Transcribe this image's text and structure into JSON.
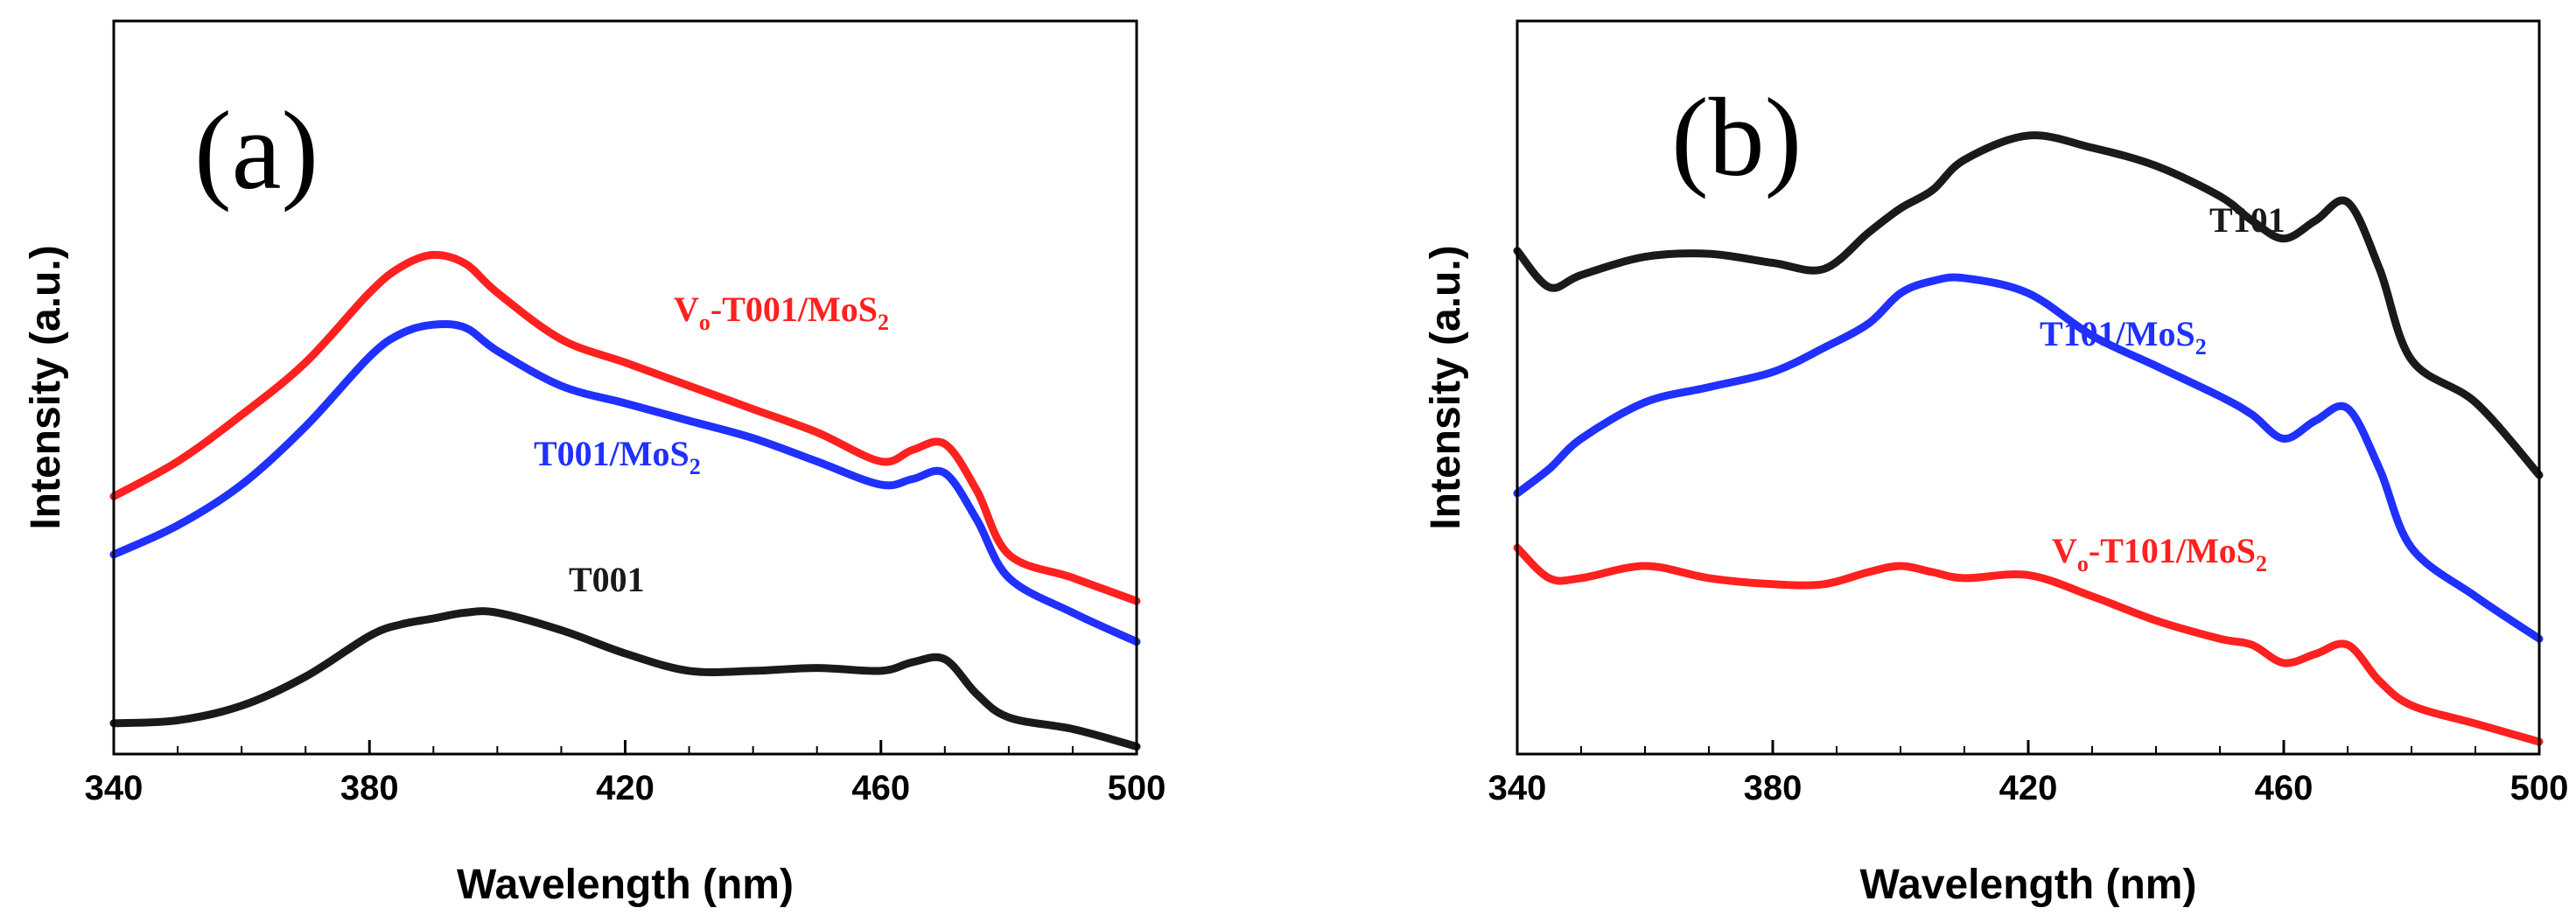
{
  "chart_data": [
    {
      "type": "line",
      "panel_label": "(a)",
      "xlabel": "Wavelength (nm)",
      "ylabel": "Intensity (a.u.)",
      "xlim": [
        340,
        500
      ],
      "ylim": [
        0,
        100
      ],
      "y_ticks_labeled": false,
      "x_ticks": [
        "340",
        "380",
        "420",
        "460",
        "500"
      ],
      "x": [
        340,
        350,
        360,
        370,
        380,
        385,
        390,
        395,
        400,
        410,
        420,
        430,
        440,
        450,
        460,
        465,
        470,
        475,
        480,
        490,
        500
      ],
      "series": [
        {
          "name": "Vo-T001/MoS2",
          "label_main": "V",
          "label_sub1": "o",
          "label_mid": "-T001/MoS",
          "label_sub2": "2",
          "color": "#ff2020",
          "values": [
            44,
            50,
            58,
            67,
            79,
            83.5,
            85.5,
            84,
            79,
            71,
            67,
            63,
            59,
            55,
            50,
            52,
            53,
            45,
            34,
            30,
            26
          ]
        },
        {
          "name": "T001/MoS2",
          "label_main": "T001/MoS",
          "label_sub2": "2",
          "color": "#2030ff",
          "values": [
            34,
            39,
            46,
            56,
            68,
            72,
            73.5,
            73,
            69,
            63,
            60,
            57,
            54,
            50,
            46,
            47,
            48,
            40,
            30,
            24,
            19
          ]
        },
        {
          "name": "T001",
          "label_main": "T001",
          "color": "#1a1a1a",
          "values": [
            5,
            5.5,
            8,
            13,
            20,
            22,
            23,
            24,
            24,
            21,
            17,
            14,
            14,
            14.5,
            14,
            15.5,
            16,
            10,
            6,
            4,
            1
          ]
        }
      ]
    },
    {
      "type": "line",
      "panel_label": "(b)",
      "xlabel": "Wavelength (nm)",
      "ylabel": "Intensity (a.u.)",
      "xlim": [
        340,
        500
      ],
      "ylim": [
        0,
        100
      ],
      "y_ticks_labeled": false,
      "x_ticks": [
        "340",
        "380",
        "420",
        "460",
        "500"
      ],
      "x": [
        340,
        345,
        350,
        360,
        370,
        380,
        388,
        395,
        400,
        405,
        410,
        420,
        430,
        440,
        450,
        455,
        460,
        465,
        470,
        475,
        480,
        490,
        500
      ],
      "series": [
        {
          "name": "T101",
          "label_main": "T101",
          "color": "#1a1a1a",
          "values": [
            81,
            75,
            77,
            80,
            80.5,
            79,
            78,
            84,
            88,
            91,
            96,
            100,
            98,
            95,
            90,
            86,
            83,
            86,
            89,
            78,
            63,
            56,
            44
          ]
        },
        {
          "name": "T101/MoS2",
          "label_main": "T101/MoS",
          "label_sub2": "2",
          "color": "#2030ff",
          "values": [
            41,
            45,
            50,
            56,
            58.5,
            61,
            65,
            69,
            74,
            76,
            76.5,
            74,
            67,
            62,
            57,
            54,
            50,
            53,
            55,
            45,
            32,
            24,
            17
          ]
        },
        {
          "name": "Vo-T101/MoS2",
          "label_main": "V",
          "label_sub1": "o",
          "label_mid": "-T101/MoS",
          "label_sub2": "2",
          "color": "#ff2020",
          "values": [
            32,
            27,
            27,
            29,
            27,
            26,
            26,
            28,
            29,
            28,
            27,
            27.5,
            24,
            20,
            17,
            16,
            13,
            14.5,
            16,
            10,
            6,
            3,
            0
          ]
        }
      ]
    }
  ]
}
